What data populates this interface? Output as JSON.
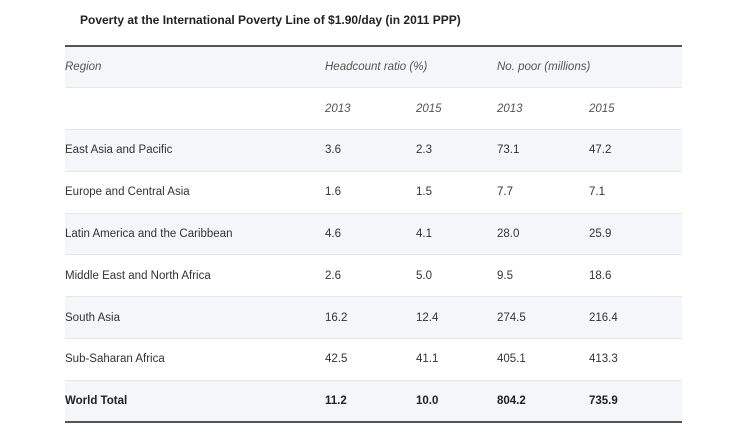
{
  "title": "Poverty at the International Poverty Line of $1.90/day (in 2011 PPP)",
  "table": {
    "header": {
      "region": "Region",
      "headcount": "Headcount ratio (%)",
      "poor": "No. poor (millions)"
    },
    "years": [
      "2013",
      "2015",
      "2013",
      "2015"
    ],
    "rows": [
      {
        "region": "East Asia and Pacific",
        "h2013": "3.6",
        "h2015": "2.3",
        "p2013": "73.1",
        "p2015": "47.2"
      },
      {
        "region": "Europe and Central Asia",
        "h2013": "1.6",
        "h2015": "1.5",
        "p2013": "7.7",
        "p2015": "7.1"
      },
      {
        "region": "Latin America and the Caribbean",
        "h2013": "4.6",
        "h2015": "4.1",
        "p2013": "28.0",
        "p2015": "25.9"
      },
      {
        "region": "Middle East and North Africa",
        "h2013": "2.6",
        "h2015": "5.0",
        "p2013": "9.5",
        "p2015": "18.6"
      },
      {
        "region": "South Asia",
        "h2013": "16.2",
        "h2015": "12.4",
        "p2013": "274.5",
        "p2015": "216.4"
      },
      {
        "region": "Sub-Saharan Africa",
        "h2013": "42.5",
        "h2015": "41.1",
        "p2013": "405.1",
        "p2015": "413.3"
      }
    ],
    "total": {
      "region": "World Total",
      "h2013": "11.2",
      "h2015": "10.0",
      "p2013": "804.2",
      "p2015": "735.9"
    }
  }
}
